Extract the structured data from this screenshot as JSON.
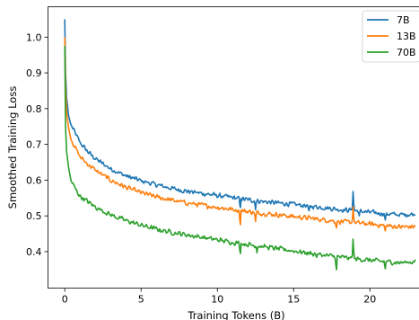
{
  "chart_data": {
    "type": "line",
    "xlabel": "Training Tokens (B)",
    "ylabel": "Smoothed Training Loss",
    "xlim": [
      -1.1,
      23.6
    ],
    "ylim": [
      0.298,
      1.085
    ],
    "xticks": [
      0,
      5,
      10,
      15,
      20
    ],
    "yticks": [
      0.4,
      0.5,
      0.6,
      0.7,
      0.8,
      0.9,
      1.0
    ],
    "grid": false,
    "legend": "top-right",
    "series": [
      {
        "name": "7B",
        "color": "#1f77b4",
        "points": [
          [
            0.0,
            1.05
          ],
          [
            0.05,
            0.9
          ],
          [
            0.12,
            0.83
          ],
          [
            0.25,
            0.78
          ],
          [
            0.4,
            0.755
          ],
          [
            0.7,
            0.73
          ],
          [
            1.0,
            0.705
          ],
          [
            1.5,
            0.68
          ],
          [
            2.0,
            0.66
          ],
          [
            3.0,
            0.632
          ],
          [
            4.0,
            0.612
          ],
          [
            5.0,
            0.598
          ],
          [
            6.0,
            0.587
          ],
          [
            7.0,
            0.577
          ],
          [
            8.0,
            0.569
          ],
          [
            9.0,
            0.563
          ],
          [
            10.0,
            0.557
          ],
          [
            11.0,
            0.551
          ],
          [
            12.0,
            0.545
          ],
          [
            13.0,
            0.54
          ],
          [
            14.0,
            0.536
          ],
          [
            15.0,
            0.532
          ],
          [
            16.0,
            0.528
          ],
          [
            17.0,
            0.523
          ],
          [
            18.0,
            0.518
          ],
          [
            19.0,
            0.515
          ],
          [
            20.0,
            0.51
          ],
          [
            21.0,
            0.506
          ],
          [
            22.0,
            0.503
          ],
          [
            23.0,
            0.505
          ]
        ],
        "spikes": [
          [
            11.5,
            0.515
          ],
          [
            12.5,
            0.515
          ],
          [
            16.0,
            0.51
          ],
          [
            18.9,
            0.573
          ],
          [
            19.3,
            0.5
          ],
          [
            21.0,
            0.485
          ]
        ]
      },
      {
        "name": "13B",
        "color": "#ff7f0e",
        "points": [
          [
            0.0,
            1.0
          ],
          [
            0.05,
            0.86
          ],
          [
            0.12,
            0.79
          ],
          [
            0.25,
            0.745
          ],
          [
            0.4,
            0.715
          ],
          [
            0.7,
            0.69
          ],
          [
            1.0,
            0.665
          ],
          [
            1.5,
            0.645
          ],
          [
            2.0,
            0.628
          ],
          [
            3.0,
            0.6
          ],
          [
            4.0,
            0.58
          ],
          [
            5.0,
            0.565
          ],
          [
            6.0,
            0.553
          ],
          [
            7.0,
            0.544
          ],
          [
            8.0,
            0.536
          ],
          [
            9.0,
            0.53
          ],
          [
            10.0,
            0.524
          ],
          [
            11.0,
            0.518
          ],
          [
            12.0,
            0.512
          ],
          [
            13.0,
            0.507
          ],
          [
            14.0,
            0.503
          ],
          [
            15.0,
            0.498
          ],
          [
            16.0,
            0.494
          ],
          [
            17.0,
            0.489
          ],
          [
            18.0,
            0.484
          ],
          [
            19.0,
            0.481
          ],
          [
            20.0,
            0.477
          ],
          [
            21.0,
            0.473
          ],
          [
            22.0,
            0.469
          ],
          [
            23.0,
            0.47
          ]
        ],
        "spikes": [
          [
            11.5,
            0.462
          ],
          [
            12.5,
            0.482
          ],
          [
            17.8,
            0.46
          ],
          [
            18.9,
            0.53
          ],
          [
            21.0,
            0.455
          ]
        ]
      },
      {
        "name": "70B",
        "color": "#2ca02c",
        "points": [
          [
            0.0,
            0.975
          ],
          [
            0.05,
            0.75
          ],
          [
            0.12,
            0.68
          ],
          [
            0.25,
            0.635
          ],
          [
            0.4,
            0.6
          ],
          [
            0.7,
            0.575
          ],
          [
            1.0,
            0.555
          ],
          [
            1.5,
            0.54
          ],
          [
            2.0,
            0.525
          ],
          [
            3.0,
            0.503
          ],
          [
            4.0,
            0.487
          ],
          [
            5.0,
            0.474
          ],
          [
            6.0,
            0.463
          ],
          [
            7.0,
            0.454
          ],
          [
            8.0,
            0.447
          ],
          [
            9.0,
            0.44
          ],
          [
            10.0,
            0.433
          ],
          [
            11.0,
            0.426
          ],
          [
            12.0,
            0.42
          ],
          [
            13.0,
            0.414
          ],
          [
            14.0,
            0.408
          ],
          [
            15.0,
            0.402
          ],
          [
            16.0,
            0.396
          ],
          [
            17.0,
            0.39
          ],
          [
            18.0,
            0.385
          ],
          [
            19.0,
            0.38
          ],
          [
            20.0,
            0.376
          ],
          [
            21.0,
            0.372
          ],
          [
            22.0,
            0.369
          ],
          [
            23.0,
            0.372
          ]
        ],
        "spikes": [
          [
            11.5,
            0.385
          ],
          [
            12.6,
            0.395
          ],
          [
            16.5,
            0.382
          ],
          [
            17.8,
            0.337
          ],
          [
            18.9,
            0.44
          ],
          [
            21.0,
            0.348
          ]
        ]
      }
    ]
  }
}
